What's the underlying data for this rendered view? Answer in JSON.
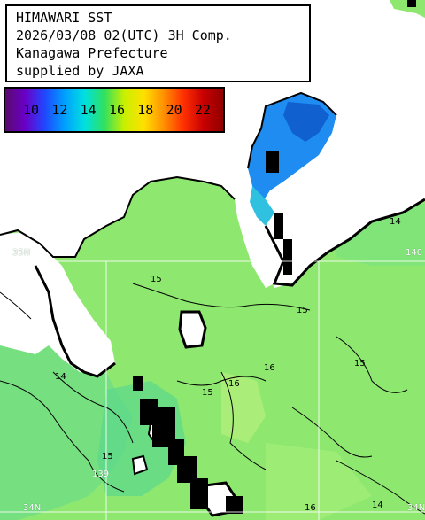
{
  "title": {
    "lines": [
      "HIMAWARI SST",
      "2026/03/08 02(UTC) 3H Comp.",
      "Kanagawa Prefecture",
      "supplied by JAXA"
    ]
  },
  "legend": {
    "ticks": [
      "10",
      "12",
      "14",
      "16",
      "18",
      "20",
      "22"
    ],
    "gradient": [
      "#5a0a6e",
      "#6a00c8",
      "#2048ff",
      "#00a0ff",
      "#00e0e0",
      "#30e060",
      "#c8f000",
      "#ffe000",
      "#ff9000",
      "#ff3000",
      "#c80000",
      "#900000"
    ]
  },
  "grid": {
    "lat_35": "35N",
    "lat_34": "34N",
    "lat_34_right": "34N",
    "lon_139": "139",
    "lon_140": "140"
  },
  "contours": {
    "c14_a": "14",
    "c14_b": "14",
    "c14_c": "14",
    "c15_a": "15",
    "c15_b": "15",
    "c15_c": "15",
    "c15_d": "15",
    "c15_e": "15",
    "c16_a": "16",
    "c16_b": "16",
    "c16_c": "16"
  },
  "colors": {
    "sea": "#8ee870",
    "sea_warm": "#b6f07c",
    "sea_cool": "#5ed88a",
    "bay_cold": "#1e8cf0",
    "land": "#ffffff",
    "cloud_mask": "#000000"
  }
}
